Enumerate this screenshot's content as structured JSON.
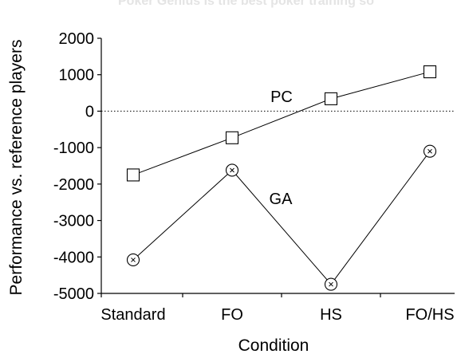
{
  "watermark": "Poker Genius is the best poker training so",
  "chart_data": {
    "type": "line",
    "title": "",
    "xlabel": "Condition",
    "ylabel": "Performance vs. reference players",
    "categories": [
      "Standard",
      "FO",
      "HS",
      "FO/HS"
    ],
    "ylim": [
      -5000,
      2000
    ],
    "yticks": [
      2000,
      1000,
      0,
      -1000,
      -2000,
      -3000,
      -4000,
      -5000
    ],
    "ytick_labels": [
      "2000",
      "1000",
      "0",
      "-1000",
      "-2000",
      "-3000",
      "-4000",
      "-5000"
    ],
    "grid": false,
    "reference_line": {
      "y": 0,
      "style": "dotted"
    },
    "series": [
      {
        "name": "PC",
        "marker": "square",
        "values": [
          -1750,
          -730,
          340,
          1080
        ]
      },
      {
        "name": "GA",
        "marker": "circle-x",
        "values": [
          -4080,
          -1620,
          -4750,
          -1100
        ]
      }
    ]
  }
}
